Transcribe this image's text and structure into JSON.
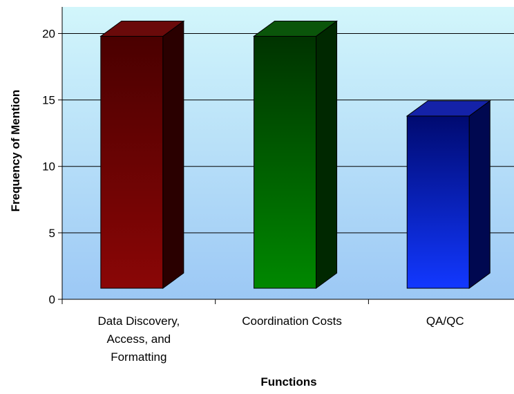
{
  "chart_data": {
    "type": "bar",
    "title": "",
    "xlabel": "Functions",
    "ylabel": "Frequency of Mention",
    "categories": [
      [
        "Data Discovery,",
        "Access, and",
        "Formatting"
      ],
      [
        "Coordination Costs"
      ],
      [
        "QA/QC"
      ]
    ],
    "values": [
      20,
      20,
      14
    ],
    "ylim": [
      0,
      22
    ],
    "yticks": [
      0,
      5,
      10,
      15,
      20
    ],
    "grid": true,
    "legend": "none",
    "style": "3d-column",
    "colors": {
      "bars": [
        {
          "top": "#4a0000",
          "bottom": "#8a0606",
          "side": "#2a0000",
          "cap": "#6a0a0a"
        },
        {
          "top": "#003300",
          "bottom": "#008800",
          "side": "#002800",
          "cap": "#0a550a"
        },
        {
          "top": "#000a70",
          "bottom": "#1238ff",
          "side": "#000850",
          "cap": "#1422a8"
        }
      ],
      "background_top": "#d2f6fb",
      "background_bottom": "#9cc8f5",
      "gridline": "#000000"
    }
  }
}
